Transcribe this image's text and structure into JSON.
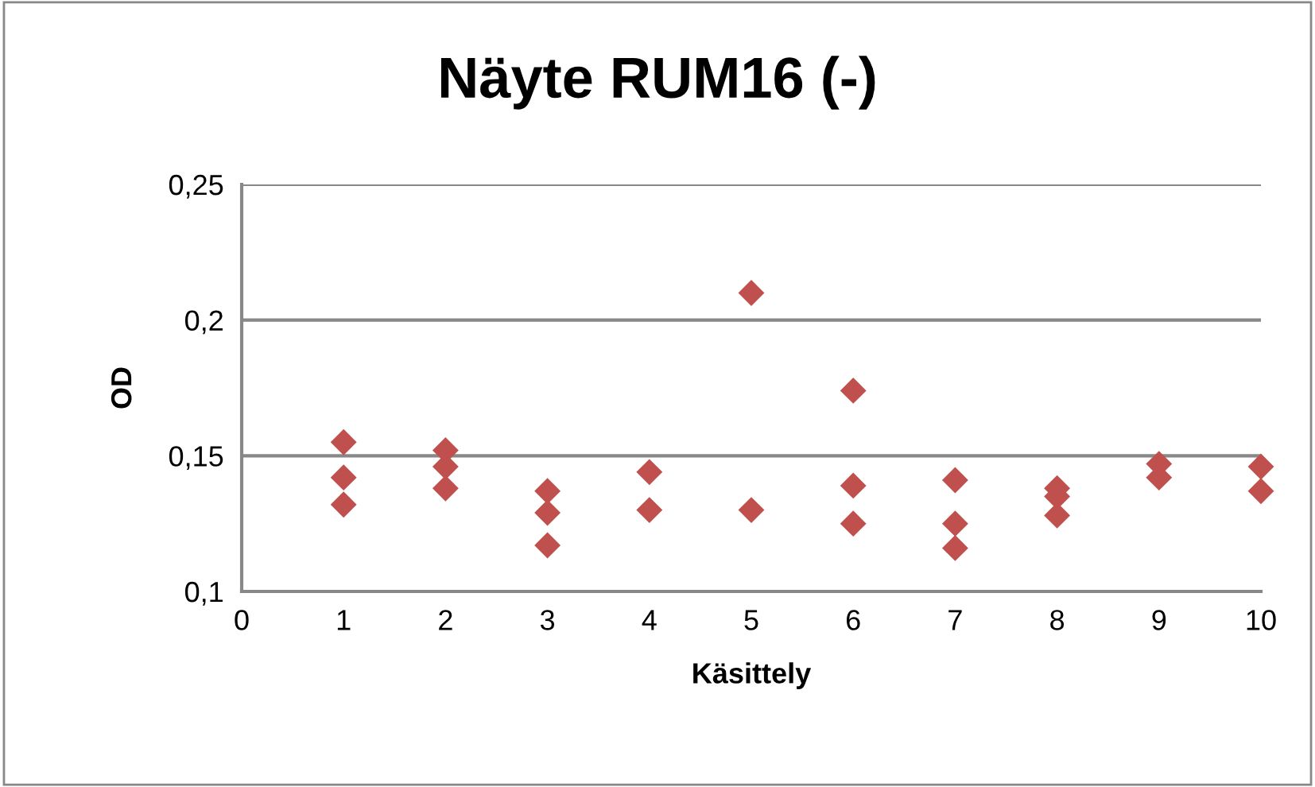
{
  "chart_data": {
    "type": "scatter",
    "title": "Näyte RUM16 (-)",
    "xlabel": "Käsittely",
    "ylabel": "OD",
    "x": [
      1,
      1,
      1,
      2,
      2,
      2,
      3,
      3,
      3,
      4,
      4,
      5,
      5,
      6,
      6,
      6,
      7,
      7,
      7,
      8,
      8,
      8,
      9,
      9,
      10,
      10
    ],
    "values": [
      0.155,
      0.142,
      0.132,
      0.152,
      0.146,
      0.138,
      0.137,
      0.129,
      0.117,
      0.144,
      0.13,
      0.21,
      0.13,
      0.174,
      0.139,
      0.125,
      0.141,
      0.125,
      0.116,
      0.138,
      0.135,
      0.128,
      0.147,
      0.142,
      0.146,
      0.137
    ],
    "color": "#c0504d",
    "marker": "diamond",
    "xlim": [
      0,
      10
    ],
    "xticks": [
      {
        "value": 0,
        "label": "0"
      },
      {
        "value": 1,
        "label": "1"
      },
      {
        "value": 2,
        "label": "2"
      },
      {
        "value": 3,
        "label": "3"
      },
      {
        "value": 4,
        "label": "4"
      },
      {
        "value": 5,
        "label": "5"
      },
      {
        "value": 6,
        "label": "6"
      },
      {
        "value": 7,
        "label": "7"
      },
      {
        "value": 8,
        "label": "8"
      },
      {
        "value": 9,
        "label": "9"
      },
      {
        "value": 10,
        "label": "10"
      }
    ],
    "ylim": [
      0.1,
      0.25
    ],
    "yticks": [
      {
        "value": 0.1,
        "label": "0,1"
      },
      {
        "value": 0.15,
        "label": "0,15"
      },
      {
        "value": 0.2,
        "label": "0,2"
      },
      {
        "value": 0.25,
        "label": "0,25"
      }
    ],
    "grid": "y"
  }
}
